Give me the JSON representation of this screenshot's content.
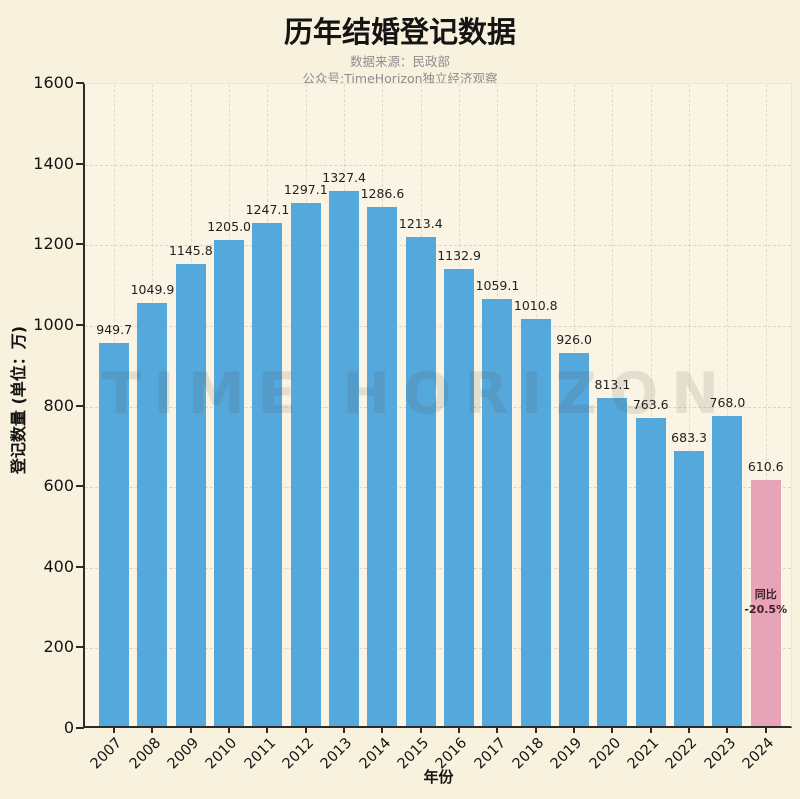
{
  "title": "历年结婚登记数据",
  "subtitle_line1": "数据来源：民政部",
  "subtitle_line2": "公众号:TimeHorizon独立经济观察",
  "watermark": "TIME HORIZON",
  "colors": {
    "background": "#f8f1de",
    "bar_blue": "#55a8dc",
    "bar_pink": "#e7a3b7",
    "spine": "#2b2b2b",
    "title_text": "#141414",
    "subtitle_text": "#8e8e8e",
    "annotation_text": "#3f2029"
  },
  "chart_data": {
    "type": "bar",
    "title": "历年结婚登记数据",
    "xlabel": "年份",
    "ylabel": "登记数量 (单位：万)",
    "categories": [
      "2007",
      "2008",
      "2009",
      "2010",
      "2011",
      "2012",
      "2013",
      "2014",
      "2015",
      "2016",
      "2017",
      "2018",
      "2019",
      "2020",
      "2021",
      "2022",
      "2023",
      "2024"
    ],
    "values": [
      949.7,
      1049.9,
      1145.8,
      1205.0,
      1247.1,
      1297.1,
      1327.4,
      1286.6,
      1213.4,
      1132.9,
      1059.1,
      1010.8,
      926.0,
      813.1,
      763.6,
      683.3,
      768.0,
      610.6
    ],
    "value_labels": [
      "949.7",
      "1049.9",
      "1145.8",
      "1205.0",
      "1247.1",
      "1297.1",
      "1327.4",
      "1286.6",
      "1213.4",
      "1132.9",
      "1059.1",
      "1010.8",
      "926.0",
      "813.1",
      "763.6",
      "683.3",
      "768.0",
      "610.6"
    ],
    "ylim": [
      0,
      1600
    ],
    "ytick_interval": 200,
    "ytick_labels": [
      "0",
      "200",
      "400",
      "600",
      "800",
      "1000",
      "1200",
      "1400",
      "1600"
    ],
    "grid": true,
    "legend": "none",
    "highlight_category": "2024",
    "annotation": {
      "line1": "同比",
      "line2": "-20.5%",
      "target_category": "2024"
    }
  }
}
